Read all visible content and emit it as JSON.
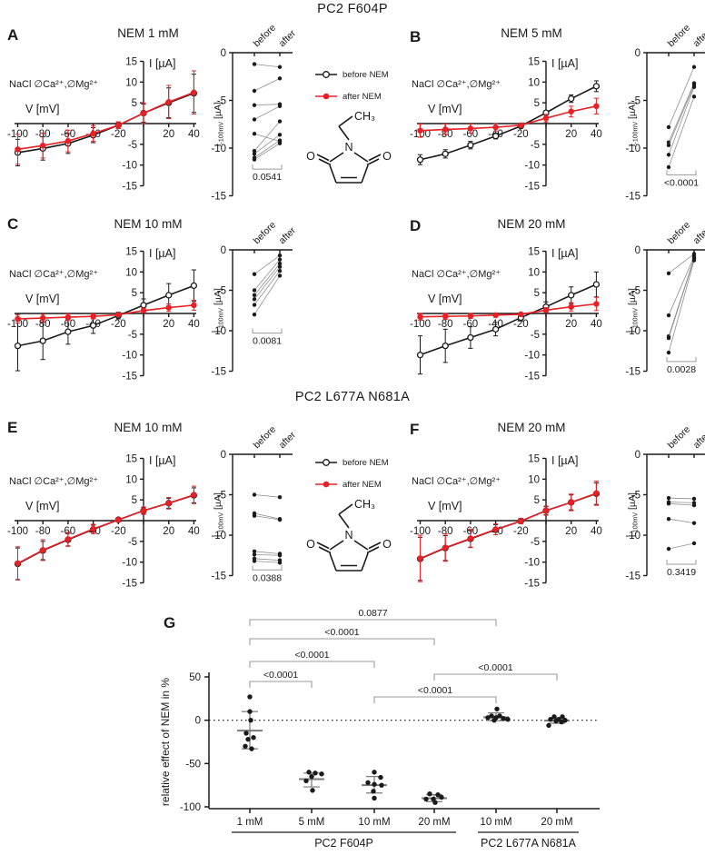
{
  "figure": {
    "title_top": "PC2 F604P",
    "title_bottom": "PC2 L677A N681A"
  },
  "legend": {
    "before_label": "before NEM",
    "after_label": "after NEM"
  },
  "molecule": {
    "n": "N",
    "o": "O",
    "ethyl": "CH₃"
  },
  "colors": {
    "black": "#1a1a1a",
    "red": "#e82127",
    "gray_line": "#9b9b9b",
    "pair_line": "#8f8f8f",
    "mean_bar": "#7a7a7a"
  },
  "chart_data": {
    "type": "multi-panel",
    "iv_common": {
      "xlabel": "V [mV]",
      "ylabel": "I [µA]",
      "condition": "NaCl ∅Ca²⁺,∅Mg²⁺",
      "x": [
        -100,
        -80,
        -60,
        -40,
        -20,
        0,
        20,
        40
      ],
      "x_ticks": [
        -100,
        -80,
        -60,
        -40,
        -20,
        0,
        20,
        40
      ],
      "y_ticks": [
        15,
        10,
        5,
        -5,
        -10,
        -15
      ],
      "xlim": [
        -100,
        40
      ],
      "ylim": [
        -15,
        15
      ],
      "legend_entries": [
        "before NEM",
        "after NEM"
      ]
    },
    "paired_common": {
      "col_labels": [
        "before",
        "after"
      ],
      "ylabel_prefix": "I",
      "ylabel_sub": "-100mV",
      "ylabel_suffix": " [µA]",
      "y_ticks": [
        0,
        -5,
        -10,
        -15
      ],
      "ylim": [
        -15,
        0
      ]
    },
    "panels": [
      {
        "letter": "A",
        "title": "NEM 1 mM",
        "iv": {
          "before": {
            "y": [
              -7.0,
              -6.0,
              -4.8,
              -2.8,
              -0.4,
              2.5,
              5.0,
              7.3
            ],
            "err": [
              3.2,
              2.8,
              2.4,
              1.8,
              0.8,
              2.2,
              3.6,
              4.6
            ]
          },
          "after": {
            "y": [
              -6.2,
              -5.3,
              -4.2,
              -2.4,
              -0.4,
              2.5,
              5.2,
              7.5
            ],
            "err": [
              3.6,
              3.0,
              2.6,
              1.9,
              0.8,
              2.5,
              4.0,
              5.2
            ]
          }
        },
        "paired": {
          "pairs": [
            [
              -1.2,
              -1.5
            ],
            [
              -4.0,
              -2.7
            ],
            [
              -5.5,
              -5.4
            ],
            [
              -7.0,
              -5.6
            ],
            [
              -8.5,
              -9.3
            ],
            [
              -10.3,
              -7.2
            ],
            [
              -10.6,
              -8.6
            ],
            [
              -11.0,
              -9.2
            ],
            [
              -11.2,
              -9.5
            ]
          ],
          "p": "0.0541",
          "bracket_v": -12.2
        }
      },
      {
        "letter": "B",
        "title": "NEM 5 mM",
        "iv": {
          "before": {
            "y": [
              -8.7,
              -7.3,
              -5.2,
              -3.0,
              -0.6,
              2.6,
              6.0,
              9.0
            ],
            "err": [
              1.2,
              1.0,
              0.9,
              0.7,
              0.4,
              0.5,
              0.9,
              1.3
            ]
          },
          "after": {
            "y": [
              -1.7,
              -1.4,
              -1.2,
              -0.9,
              -0.4,
              1.3,
              2.9,
              4.2
            ],
            "err": [
              1.6,
              1.3,
              1.1,
              0.9,
              0.5,
              0.9,
              1.3,
              1.9
            ]
          }
        },
        "paired": {
          "pairs": [
            [
              -7.8,
              -1.5
            ],
            [
              -9.4,
              -3.2
            ],
            [
              -9.7,
              -3.4
            ],
            [
              -10.7,
              -3.6
            ],
            [
              -12.0,
              -4.6
            ]
          ],
          "p": "<0.0001",
          "bracket_v": -12.8
        }
      },
      {
        "letter": "C",
        "title": "NEM 10 mM",
        "iv": {
          "before": {
            "y": [
              -7.8,
              -6.6,
              -4.4,
              -2.9,
              -0.5,
              2.0,
              4.4,
              6.7
            ],
            "err": [
              6.0,
              4.5,
              3.0,
              1.9,
              0.8,
              1.5,
              2.8,
              3.8
            ]
          },
          "after": {
            "y": [
              -1.3,
              -1.1,
              -0.9,
              -0.7,
              -0.3,
              0.7,
              1.4,
              2.0
            ],
            "err": [
              1.0,
              0.9,
              0.8,
              0.6,
              0.3,
              0.5,
              0.9,
              1.2
            ]
          }
        },
        "paired": {
          "pairs": [
            [
              -3.0,
              -0.7
            ],
            [
              -5.0,
              -1.2
            ],
            [
              -5.6,
              -1.7
            ],
            [
              -6.1,
              -2.1
            ],
            [
              -6.8,
              -2.6
            ],
            [
              -8.0,
              -3.2
            ]
          ],
          "p": "0.0081",
          "bracket_v": -10.3
        }
      },
      {
        "letter": "D",
        "title": "NEM 20 mM",
        "iv": {
          "before": {
            "y": [
              -10.0,
              -7.8,
              -5.8,
              -3.8,
              -1.0,
              1.6,
              4.4,
              7.0
            ],
            "err": [
              4.6,
              4.0,
              2.6,
              1.6,
              0.8,
              1.2,
              2.0,
              3.0
            ]
          },
          "after": {
            "y": [
              -0.8,
              -0.7,
              -0.6,
              -0.4,
              -0.2,
              0.8,
              1.6,
              2.3
            ],
            "err": [
              0.8,
              0.7,
              0.6,
              0.5,
              0.3,
              0.6,
              1.0,
              1.6
            ]
          }
        },
        "paired": {
          "pairs": [
            [
              -2.9,
              -0.5
            ],
            [
              -8.1,
              -0.8
            ],
            [
              -10.7,
              -1.0
            ],
            [
              -10.9,
              -1.1
            ],
            [
              -12.7,
              -1.3
            ]
          ],
          "p": "0.0028",
          "bracket_v": -13.8
        }
      },
      {
        "letter": "E",
        "title": "NEM 10 mM",
        "iv": {
          "before": {
            "y": [
              -10.4,
              -7.2,
              -4.6,
              -2.1,
              0.2,
              2.4,
              4.2,
              6.1
            ],
            "err": [
              3.8,
              2.2,
              1.5,
              1.0,
              0.5,
              0.8,
              1.2,
              1.8
            ]
          },
          "after": {
            "y": [
              -10.3,
              -7.1,
              -4.5,
              -2.0,
              0.2,
              2.4,
              4.2,
              6.2
            ],
            "err": [
              4.0,
              2.5,
              1.7,
              1.1,
              0.5,
              0.9,
              1.4,
              2.1
            ]
          }
        },
        "paired": {
          "pairs": [
            [
              -5.0,
              -5.3
            ],
            [
              -7.3,
              -8.0
            ],
            [
              -7.6,
              -8.1
            ],
            [
              -12.0,
              -12.3
            ],
            [
              -12.4,
              -12.5
            ],
            [
              -12.9,
              -13.1
            ],
            [
              -13.2,
              -13.4
            ]
          ],
          "p": "0.0388",
          "bracket_v": -14.3
        }
      },
      {
        "letter": "F",
        "title": "NEM 20 mM",
        "iv": {
          "before": {
            "y": [
              -9.2,
              -6.6,
              -4.4,
              -2.2,
              -0.1,
              2.4,
              4.4,
              6.5
            ],
            "err": [
              5.2,
              3.0,
              2.0,
              1.2,
              0.6,
              1.0,
              1.8,
              2.6
            ]
          },
          "after": {
            "y": [
              -9.1,
              -6.5,
              -4.3,
              -2.1,
              -0.1,
              2.4,
              4.4,
              6.6
            ],
            "err": [
              5.6,
              3.3,
              2.2,
              1.3,
              0.6,
              1.1,
              2.0,
              2.9
            ]
          }
        },
        "paired": {
          "pairs": [
            [
              -5.4,
              -5.5
            ],
            [
              -5.9,
              -6.0
            ],
            [
              -6.1,
              -6.3
            ],
            [
              -8.0,
              -8.5
            ],
            [
              -11.7,
              -11.0
            ]
          ],
          "p": "0.3419",
          "bracket_v": -13.6
        }
      }
    ],
    "g": {
      "letter": "G",
      "type": "dot-plot",
      "ylabel": "relative effect of NEM in %",
      "y_ticks": [
        50,
        0,
        -50,
        -100
      ],
      "ylim": [
        -100,
        50
      ],
      "zero_line_dotted": true,
      "groups": [
        {
          "label": "1 mM",
          "mean": -12,
          "err_up": 22,
          "err_dn": 21,
          "points": [
            [
              0,
              27
            ],
            [
              0,
              10
            ],
            [
              1,
              0
            ],
            [
              -4,
              -15
            ],
            [
              4,
              -20
            ],
            [
              -2,
              -22
            ],
            [
              -5,
              -30
            ],
            [
              2,
              -33
            ]
          ]
        },
        {
          "label": "5 mM",
          "mean": -68,
          "err_up": 7,
          "err_dn": 9,
          "points": [
            [
              -3,
              -60
            ],
            [
              4,
              -61
            ],
            [
              11,
              -62
            ],
            [
              0,
              -65
            ],
            [
              -6,
              -70
            ],
            [
              1,
              -81
            ]
          ]
        },
        {
          "label": "10 mM",
          "mean": -75,
          "err_up": 10,
          "err_dn": 9,
          "points": [
            [
              0,
              -60
            ],
            [
              7,
              -66
            ],
            [
              -7,
              -72
            ],
            [
              0,
              -74
            ],
            [
              8,
              -75
            ],
            [
              -1,
              -82
            ],
            [
              0,
              -90
            ]
          ]
        },
        {
          "label": "20 mM",
          "mean": -90,
          "err_up": 4,
          "err_dn": 4,
          "points": [
            [
              -5,
              -85
            ],
            [
              4,
              -86
            ],
            [
              8,
              -89
            ],
            [
              -9,
              -91
            ],
            [
              -1,
              -91
            ],
            [
              1,
              -95
            ]
          ]
        },
        {
          "label": "10 mM",
          "mean": 3.5,
          "err_up": 5,
          "err_dn": 4,
          "points": [
            [
              1,
              13
            ],
            [
              -5,
              5
            ],
            [
              4,
              5
            ],
            [
              -9,
              3
            ],
            [
              0,
              3
            ],
            [
              8,
              2
            ],
            [
              13,
              1
            ],
            [
              -2,
              0
            ]
          ]
        },
        {
          "label": "20 mM",
          "mean": -0.5,
          "err_up": 3,
          "err_dn": 3,
          "points": [
            [
              -3,
              4
            ],
            [
              6,
              4
            ],
            [
              -7,
              1
            ],
            [
              2,
              1
            ],
            [
              9,
              0
            ],
            [
              -1,
              -1
            ],
            [
              5,
              -2
            ],
            [
              -9,
              -6
            ]
          ]
        }
      ],
      "sections": [
        {
          "label": "PC2 F604P",
          "from": 0,
          "to": 3
        },
        {
          "label": "PC2 L677A N681A",
          "from": 4,
          "to": 5
        }
      ],
      "brackets": [
        {
          "a": 0,
          "b": 4,
          "y": 20,
          "label": "0.0877"
        },
        {
          "a": 0,
          "b": 3,
          "y": 41,
          "label": "<0.0001"
        },
        {
          "a": 0,
          "b": 2,
          "y": 66,
          "label": "<0.0001"
        },
        {
          "a": 0,
          "b": 1,
          "y": 88,
          "label": "<0.0001"
        },
        {
          "a": 3,
          "b": 5,
          "y": 80,
          "label": "<0.0001"
        },
        {
          "a": 2,
          "b": 4,
          "y": 105,
          "label": "<0.0001"
        }
      ]
    }
  }
}
